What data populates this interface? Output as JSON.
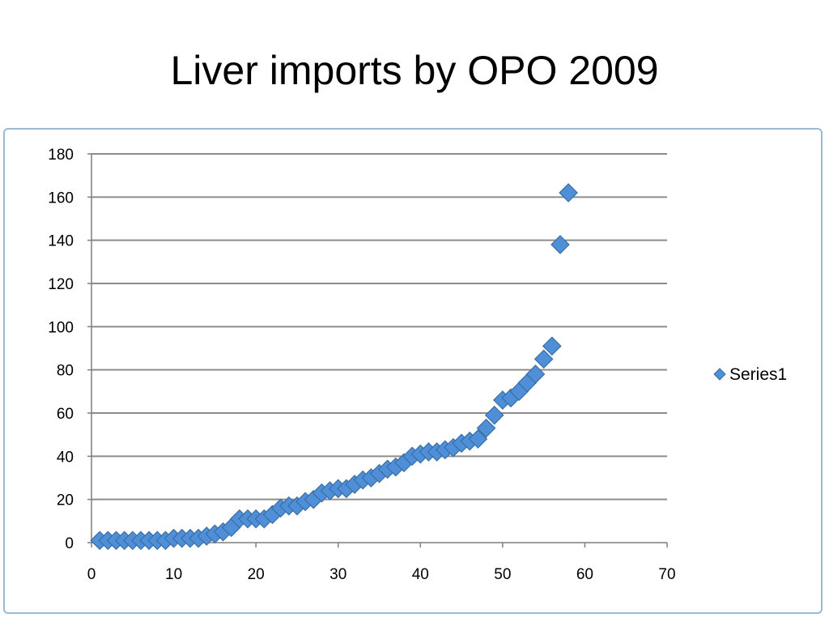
{
  "slide": {
    "title": "Liver imports by OPO 2009"
  },
  "chart_data": {
    "type": "scatter",
    "title": "",
    "xlabel": "",
    "ylabel": "",
    "xlim": [
      0,
      70
    ],
    "ylim": [
      0,
      180
    ],
    "xticks": [
      0,
      10,
      20,
      30,
      40,
      50,
      60,
      70
    ],
    "yticks": [
      0,
      20,
      40,
      60,
      80,
      100,
      120,
      140,
      160,
      180
    ],
    "grid": "horizontal",
    "legend_position": "right",
    "marker": "diamond",
    "series": [
      {
        "name": "Series1",
        "color": "#4f8fd8",
        "x": [
          1,
          2,
          3,
          4,
          5,
          6,
          7,
          8,
          9,
          10,
          11,
          12,
          13,
          14,
          15,
          16,
          17,
          18,
          19,
          20,
          21,
          22,
          23,
          24,
          25,
          26,
          27,
          28,
          29,
          30,
          31,
          32,
          33,
          34,
          35,
          36,
          37,
          38,
          39,
          40,
          41,
          42,
          43,
          44,
          45,
          46,
          47,
          48,
          49,
          50,
          51,
          52,
          53,
          54,
          55,
          56,
          57,
          58
        ],
        "y": [
          1,
          1,
          1,
          1,
          1,
          1,
          1,
          1,
          1,
          2,
          2,
          2,
          2,
          3,
          4,
          5,
          7,
          11,
          11,
          11,
          11,
          13,
          16,
          17,
          17,
          19,
          20,
          23,
          24,
          25,
          25,
          27,
          29,
          30,
          32,
          34,
          35,
          37,
          40,
          41,
          42,
          42,
          43,
          44,
          46,
          47,
          48,
          53,
          59,
          66,
          67,
          70,
          74,
          78,
          85,
          91,
          138,
          162
        ]
      }
    ]
  }
}
